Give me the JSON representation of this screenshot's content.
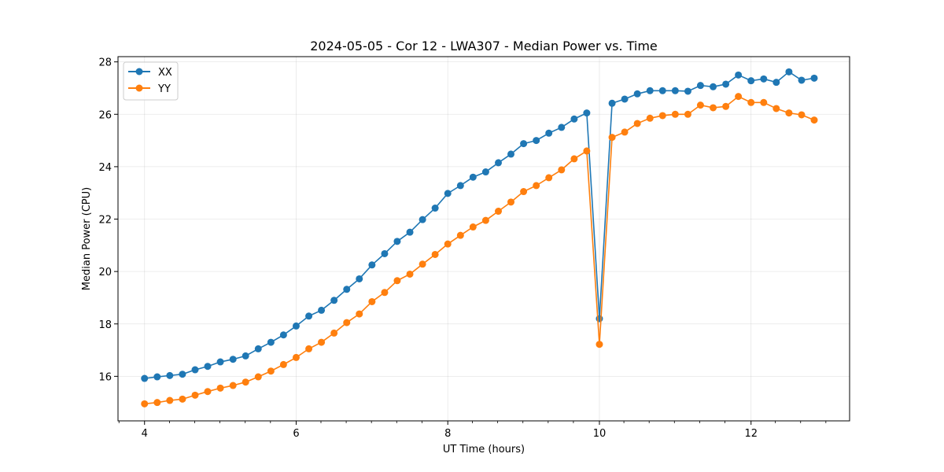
{
  "chart_data": {
    "type": "line",
    "title": "2024-05-05 - Cor 12 - LWA307 - Median Power vs. Time",
    "xlabel": "UT Time (hours)",
    "ylabel": "Median Power (CPU)",
    "xlim": [
      3.65,
      13.3
    ],
    "ylim": [
      14.3,
      28.2
    ],
    "xticks": [
      4,
      6,
      8,
      10,
      12
    ],
    "xtick_labels": [
      "4",
      "6",
      "8",
      "10",
      "12"
    ],
    "x_minor_tick_step": 0.333,
    "yticks": [
      16,
      18,
      20,
      22,
      24,
      26,
      28
    ],
    "ytick_labels": [
      "16",
      "18",
      "20",
      "22",
      "24",
      "26",
      "28"
    ],
    "grid": true,
    "legend_position": "upper-left",
    "x": [
      4.0,
      4.167,
      4.333,
      4.5,
      4.667,
      4.833,
      5.0,
      5.167,
      5.333,
      5.5,
      5.667,
      5.833,
      6.0,
      6.167,
      6.333,
      6.5,
      6.667,
      6.833,
      7.0,
      7.167,
      7.333,
      7.5,
      7.667,
      7.833,
      8.0,
      8.167,
      8.333,
      8.5,
      8.667,
      8.833,
      9.0,
      9.167,
      9.333,
      9.5,
      9.667,
      9.833,
      10.0,
      10.167,
      10.333,
      10.5,
      10.667,
      10.833,
      11.0,
      11.167,
      11.333,
      11.5,
      11.667,
      11.833,
      12.0,
      12.167,
      12.333,
      12.5,
      12.667,
      12.833
    ],
    "series": [
      {
        "name": "XX",
        "color": "#1f77b4",
        "values": [
          15.92,
          15.98,
          16.03,
          16.08,
          16.25,
          16.38,
          16.55,
          16.65,
          16.78,
          17.05,
          17.3,
          17.58,
          17.92,
          18.3,
          18.52,
          18.9,
          19.32,
          19.72,
          20.25,
          20.68,
          21.15,
          21.5,
          21.98,
          22.42,
          22.98,
          23.28,
          23.6,
          23.8,
          24.15,
          24.48,
          24.88,
          25.0,
          25.28,
          25.5,
          25.82,
          26.05,
          18.2,
          26.42,
          26.58,
          26.78,
          26.9,
          26.9,
          26.9,
          26.88,
          27.1,
          27.05,
          27.15,
          27.5,
          27.28,
          27.35,
          27.22,
          27.62,
          27.3,
          27.38
        ]
      },
      {
        "name": "YY",
        "color": "#ff7f0e",
        "values": [
          14.95,
          15.0,
          15.08,
          15.13,
          15.28,
          15.42,
          15.55,
          15.65,
          15.78,
          15.98,
          16.2,
          16.45,
          16.72,
          17.05,
          17.3,
          17.65,
          18.05,
          18.38,
          18.85,
          19.2,
          19.65,
          19.9,
          20.28,
          20.65,
          21.05,
          21.38,
          21.7,
          21.95,
          22.3,
          22.65,
          23.05,
          23.28,
          23.58,
          23.88,
          24.3,
          24.6,
          17.22,
          25.12,
          25.32,
          25.65,
          25.85,
          25.95,
          26.0,
          26.0,
          26.35,
          26.25,
          26.3,
          26.68,
          26.45,
          26.45,
          26.22,
          26.05,
          25.98,
          25.78
        ]
      }
    ]
  }
}
